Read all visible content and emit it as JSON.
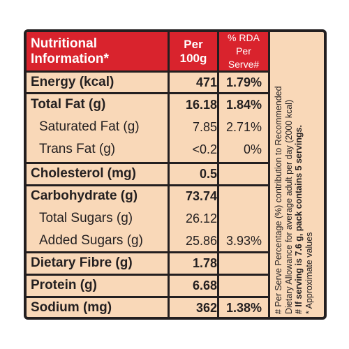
{
  "header": {
    "title_line1": "Nutritional",
    "title_line2": "Information*",
    "per_line1": "Per",
    "per_line2": "100g",
    "rda_line1": "% RDA Per",
    "rda_line2": "Serve#"
  },
  "rows": [
    {
      "name": "Energy (kcal)",
      "per100g": "471",
      "rda": "1.79%"
    },
    {
      "name": "Total Fat (g)",
      "per100g": "16.18",
      "rda": "1.84%"
    },
    {
      "name": "Saturated Fat (g)",
      "per100g": "7.85",
      "rda": "2.71%"
    },
    {
      "name": "Trans Fat (g)",
      "per100g": "<0.2",
      "rda": "0%"
    },
    {
      "name": "Cholesterol (mg)",
      "per100g": "0.5",
      "rda": ""
    },
    {
      "name": "Carbohydrate (g)",
      "per100g": "73.74",
      "rda": ""
    },
    {
      "name": "Total Sugars (g)",
      "per100g": "26.12",
      "rda": ""
    },
    {
      "name": "Added Sugars (g)",
      "per100g": "25.86",
      "rda": "3.93%"
    },
    {
      "name": "Dietary Fibre (g)",
      "per100g": "1.78",
      "rda": ""
    },
    {
      "name": "Protein (g)",
      "per100g": "6.68",
      "rda": ""
    },
    {
      "name": "Sodium (mg)",
      "per100g": "362",
      "rda": "1.38%"
    }
  ],
  "footnote": {
    "line1": "# Per Serve Percentage (%) contribution to Recommended",
    "line2": "Dietary Allowance for average adult per day (2000 kcal)",
    "line3": "# If serving is 7.6 g, pack contains 5 servings.",
    "line4": "* Approximate values"
  },
  "colors": {
    "header_red": "#d9232d",
    "panel_peach": "#f9d8b8",
    "border": "#231f20"
  }
}
